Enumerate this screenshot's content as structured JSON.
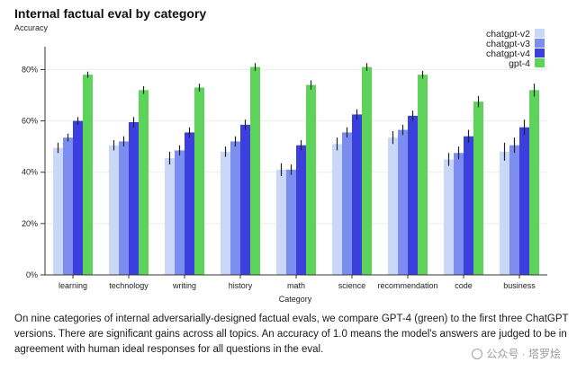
{
  "chart_data": {
    "type": "bar",
    "title": "Internal factual eval by category",
    "ylabel": "Accuracy",
    "xlabel": "Category",
    "ylim": [
      0,
      0.875
    ],
    "yticks": [
      0,
      0.2,
      0.4,
      0.6,
      0.8
    ],
    "ytick_labels": [
      "0%",
      "20%",
      "40%",
      "60%",
      "80%"
    ],
    "categories": [
      "learning",
      "technology",
      "writing",
      "history",
      "math",
      "science",
      "recommendation",
      "code",
      "business"
    ],
    "series": [
      {
        "name": "chatgpt-v2",
        "color": "#c9d7f8",
        "values": [
          0.495,
          0.505,
          0.455,
          0.48,
          0.41,
          0.51,
          0.535,
          0.45,
          0.48
        ],
        "errors": [
          0.02,
          0.02,
          0.025,
          0.02,
          0.025,
          0.025,
          0.025,
          0.025,
          0.035
        ]
      },
      {
        "name": "chatgpt-v3",
        "color": "#7b8ef0",
        "values": [
          0.535,
          0.52,
          0.485,
          0.52,
          0.41,
          0.555,
          0.565,
          0.475,
          0.505
        ],
        "errors": [
          0.015,
          0.02,
          0.02,
          0.02,
          0.02,
          0.02,
          0.02,
          0.025,
          0.03
        ]
      },
      {
        "name": "chatgpt-v4",
        "color": "#3a3fde",
        "values": [
          0.6,
          0.595,
          0.555,
          0.585,
          0.505,
          0.625,
          0.62,
          0.54,
          0.575
        ],
        "errors": [
          0.015,
          0.02,
          0.02,
          0.02,
          0.02,
          0.02,
          0.02,
          0.025,
          0.03
        ]
      },
      {
        "name": "gpt-4",
        "color": "#5ed35a",
        "values": [
          0.78,
          0.72,
          0.73,
          0.81,
          0.74,
          0.81,
          0.78,
          0.675,
          0.72
        ],
        "errors": [
          0.012,
          0.015,
          0.015,
          0.015,
          0.018,
          0.015,
          0.015,
          0.022,
          0.025
        ]
      }
    ],
    "legend_position": "top-right",
    "grid": true
  },
  "caption": "On nine categories of internal adversarially-designed factual evals, we compare GPT-4 (green) to the first three ChatGPT versions. There are significant gains across all topics. An accuracy of 1.0 means the model's answers are judged to be in agreement with human ideal responses for all questions in the eval.",
  "watermark": "公众号 · 塔罗烩"
}
